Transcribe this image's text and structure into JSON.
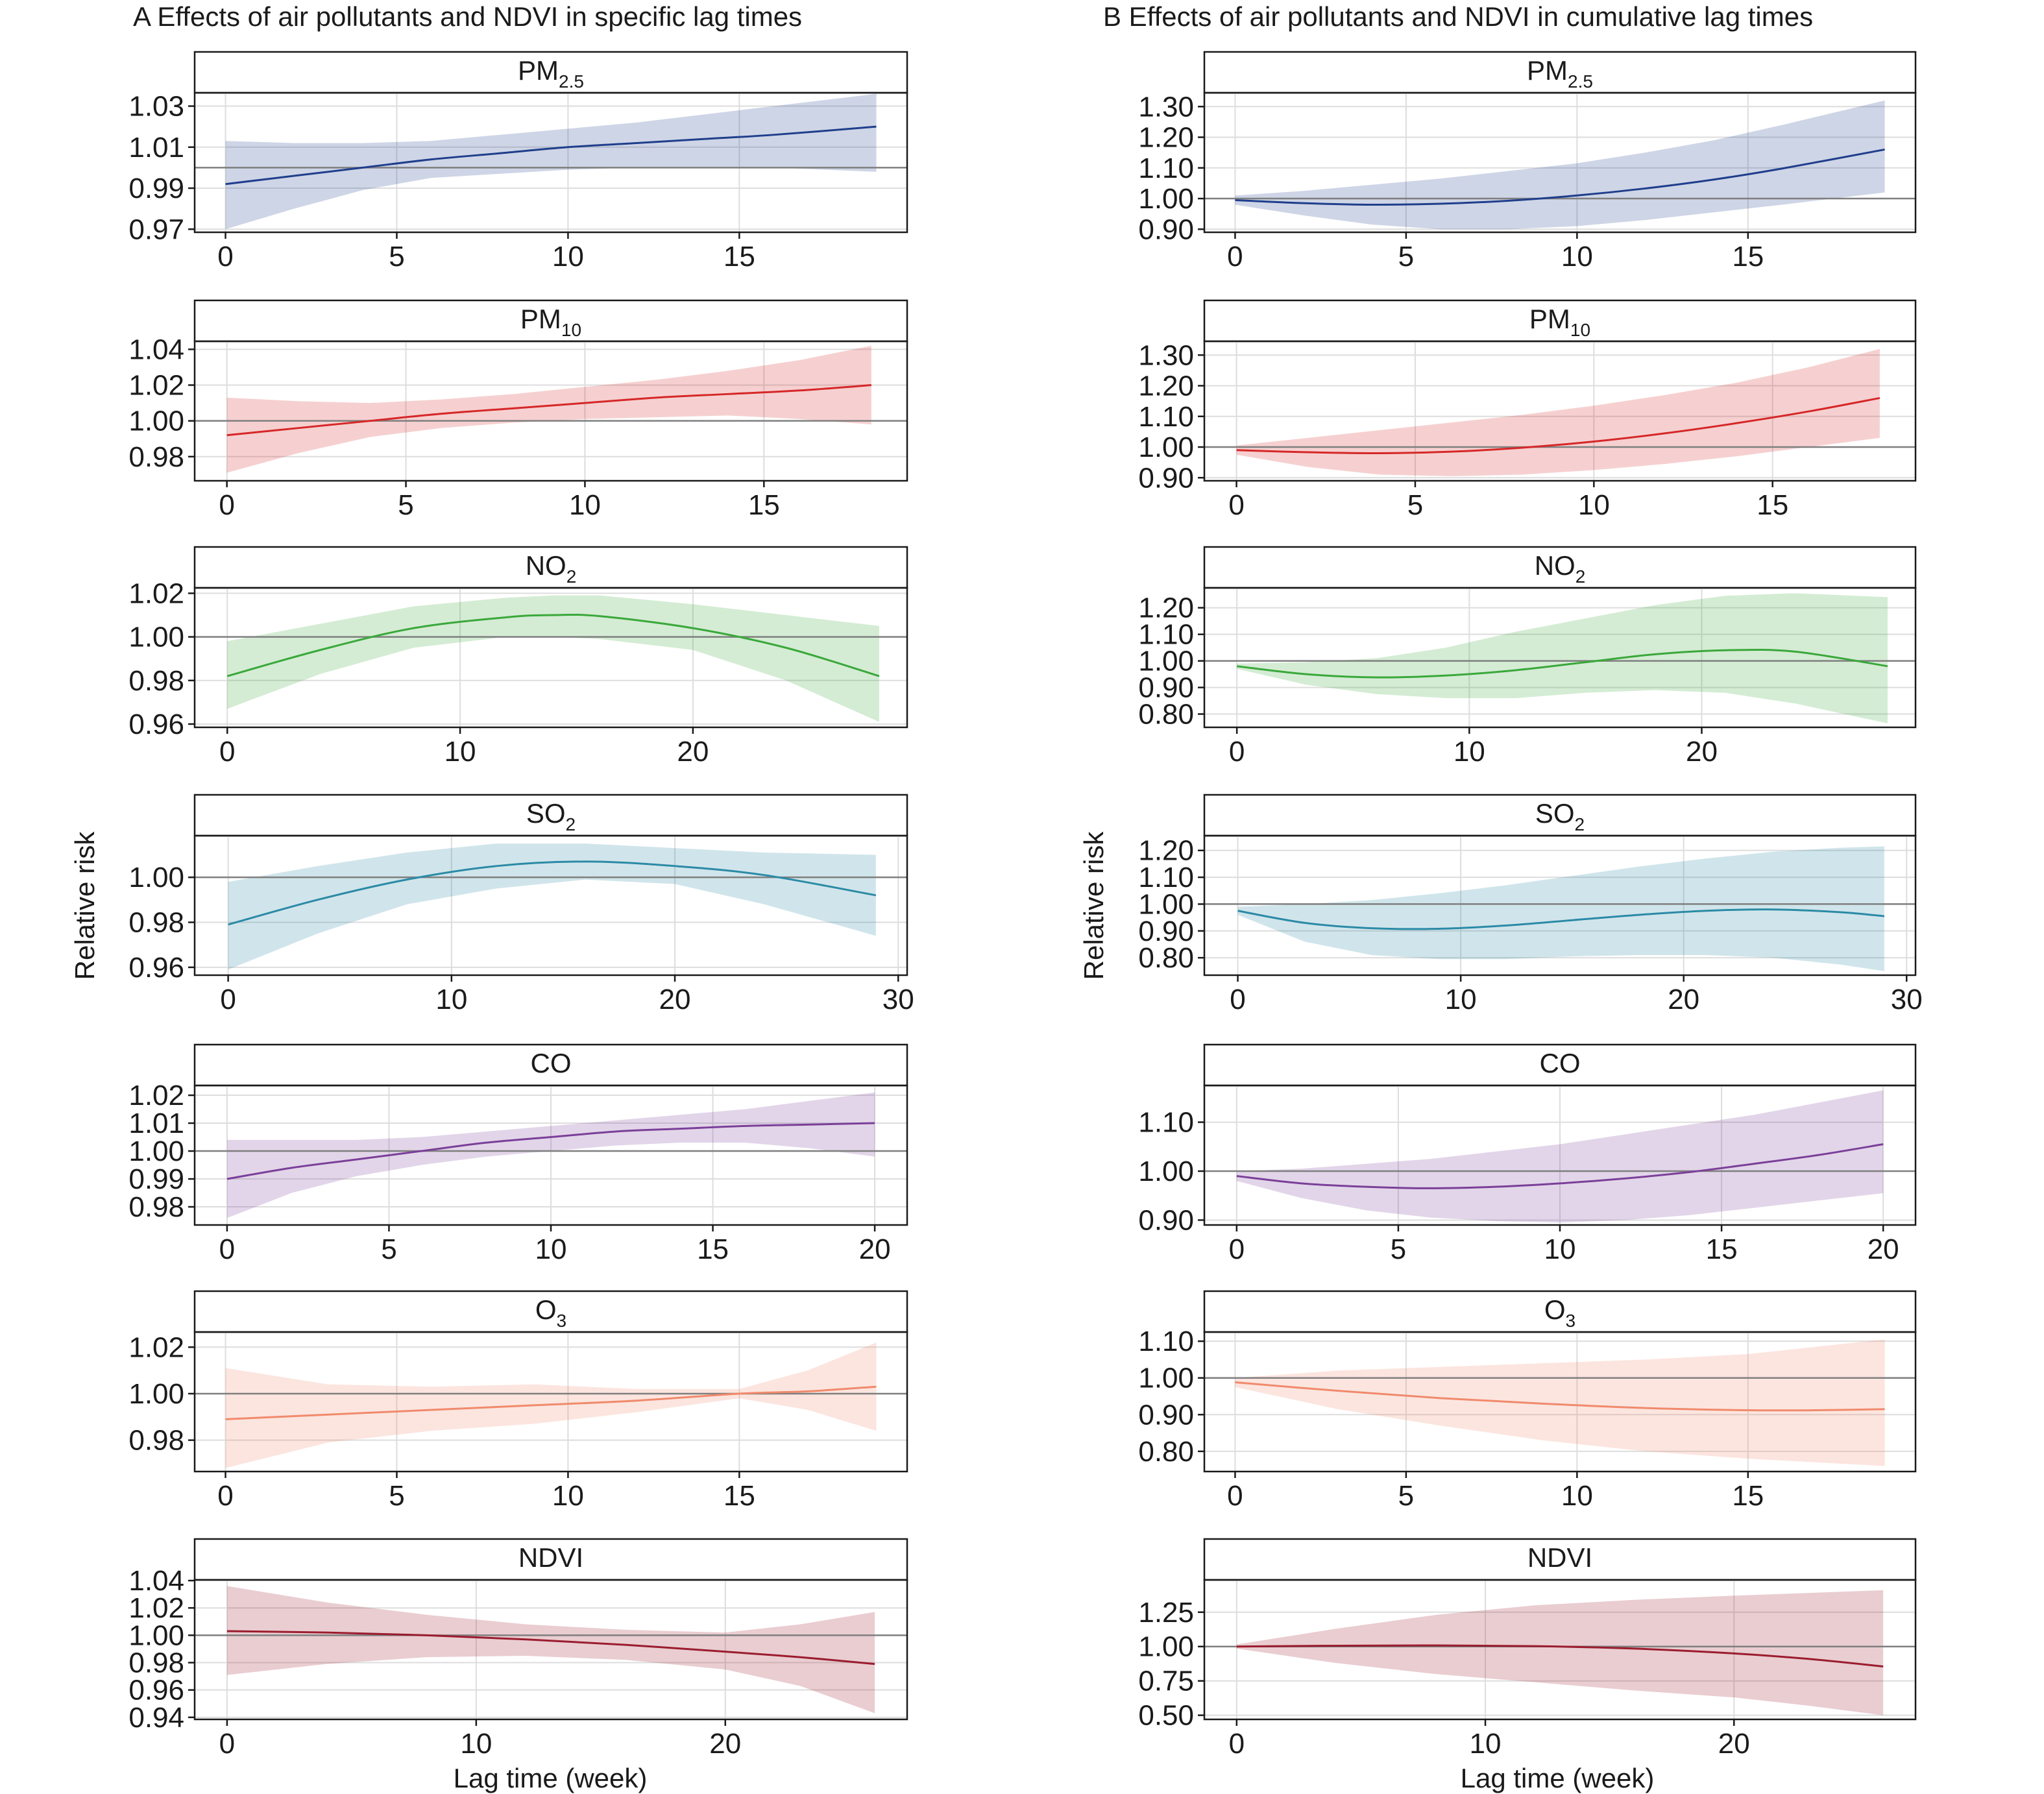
{
  "column_titles": {
    "A": "A  Effects of air pollutants and NDVI in specific lag times",
    "B": "B  Effects of air pollutants and NDVI in cumulative lag times"
  },
  "y_axis_label": "Relative risk",
  "x_axis_label": "Lag time (week)",
  "colors": {
    "PM2.5": "#1f3e8c",
    "PM10": "#d62728",
    "NO2": "#3aa83a",
    "SO2": "#2b8aa6",
    "CO": "#7b3f99",
    "O3": "#f08a6c",
    "NDVI": "#9b1c2e",
    "reference_line": "#7f7f7f",
    "grid": "#dddddd"
  },
  "chart_data": [
    {
      "type": "line",
      "panel": "A",
      "pollutant": "PM2.5",
      "title": "PM",
      "title_sub": "2.5",
      "xlabel": "",
      "ylabel": "",
      "xlim": [
        -0.9,
        19.9
      ],
      "ylim": [
        0.9685,
        1.0365
      ],
      "xticks": [
        "0",
        "5",
        "10",
        "15"
      ],
      "xtick_values": [
        0,
        5,
        10,
        15
      ],
      "yticks": [
        "0.97",
        "0.99",
        "1.01",
        "1.03"
      ],
      "ytick_values": [
        0.97,
        0.99,
        1.01,
        1.03
      ],
      "reference": 1.0,
      "x": [
        0,
        2,
        4,
        6,
        8,
        10,
        12,
        14,
        16,
        19
      ],
      "estimate": [
        0.992,
        0.996,
        1.0,
        1.004,
        1.007,
        1.01,
        1.012,
        1.014,
        1.016,
        1.02
      ],
      "lower": [
        0.97,
        0.98,
        0.989,
        0.995,
        0.997,
        0.999,
        1.0,
        1.0,
        1.0,
        0.998
      ],
      "upper": [
        1.013,
        1.012,
        1.012,
        1.013,
        1.016,
        1.019,
        1.022,
        1.026,
        1.03,
        1.036
      ]
    },
    {
      "type": "line",
      "panel": "A",
      "pollutant": "PM10",
      "title": "PM",
      "title_sub": "10",
      "xlabel": "",
      "ylabel": "",
      "xlim": [
        -0.9,
        19.0
      ],
      "ylim": [
        0.9665,
        1.0445
      ],
      "xticks": [
        "0",
        "5",
        "10",
        "15"
      ],
      "xtick_values": [
        0,
        5,
        10,
        15
      ],
      "yticks": [
        "0.98",
        "1.00",
        "1.02",
        "1.04"
      ],
      "ytick_values": [
        0.98,
        1.0,
        1.02,
        1.04
      ],
      "reference": 1.0,
      "x": [
        0,
        2,
        4,
        6,
        8,
        10,
        12,
        14,
        16,
        18
      ],
      "estimate": [
        0.992,
        0.996,
        1.0,
        1.004,
        1.007,
        1.01,
        1.013,
        1.015,
        1.017,
        1.02
      ],
      "lower": [
        0.971,
        0.982,
        0.991,
        0.996,
        0.999,
        1.001,
        1.002,
        1.003,
        1.001,
        0.998
      ],
      "upper": [
        1.013,
        1.011,
        1.01,
        1.012,
        1.015,
        1.019,
        1.023,
        1.028,
        1.034,
        1.042
      ]
    },
    {
      "type": "line",
      "panel": "A",
      "pollutant": "NO2",
      "title": "NO",
      "title_sub": "2",
      "xlabel": "",
      "ylabel": "",
      "xlim": [
        -1.4,
        29.2
      ],
      "ylim": [
        0.9585,
        1.0225
      ],
      "xticks": [
        "0",
        "10",
        "20"
      ],
      "xtick_values": [
        0,
        10,
        20
      ],
      "yticks": [
        "0.96",
        "0.98",
        "1.00",
        "1.02"
      ],
      "ytick_values": [
        0.96,
        0.98,
        1.0,
        1.02
      ],
      "reference": 1.0,
      "x": [
        0,
        4,
        8,
        12,
        14,
        16,
        20,
        24,
        28
      ],
      "estimate": [
        0.982,
        0.994,
        1.004,
        1.009,
        1.01,
        1.0095,
        1.004,
        0.995,
        0.982
      ],
      "lower": [
        0.967,
        0.983,
        0.995,
        1.0,
        1.0,
        0.999,
        0.994,
        0.98,
        0.961
      ],
      "upper": [
        0.998,
        1.006,
        1.014,
        1.018,
        1.019,
        1.019,
        1.015,
        1.01,
        1.005
      ]
    },
    {
      "type": "line",
      "panel": "A",
      "pollutant": "SO2",
      "title": "SO",
      "title_sub": "2",
      "xlabel": "",
      "ylabel": "Relative risk",
      "xlim": [
        -1.5,
        30.4
      ],
      "ylim": [
        0.9565,
        1.0185
      ],
      "xticks": [
        "0",
        "10",
        "20",
        "30"
      ],
      "xtick_values": [
        0,
        10,
        20,
        30
      ],
      "yticks": [
        "0.96",
        "0.98",
        "1.00"
      ],
      "ytick_values": [
        0.96,
        0.98,
        1.0
      ],
      "reference": 1.0,
      "x": [
        0,
        4,
        8,
        12,
        16,
        20,
        24,
        29
      ],
      "estimate": [
        0.979,
        0.99,
        0.999,
        1.005,
        1.007,
        1.005,
        1.001,
        0.992
      ],
      "lower": [
        0.959,
        0.975,
        0.988,
        0.995,
        0.999,
        0.997,
        0.988,
        0.974
      ],
      "upper": [
        0.998,
        1.005,
        1.011,
        1.015,
        1.015,
        1.013,
        1.011,
        1.01
      ]
    },
    {
      "type": "line",
      "panel": "A",
      "pollutant": "CO",
      "title": "CO",
      "title_sub": "",
      "xlabel": "",
      "ylabel": "",
      "xlim": [
        -1.0,
        21.0
      ],
      "ylim": [
        0.9735,
        1.0235
      ],
      "xticks": [
        "0",
        "5",
        "10",
        "15",
        "20"
      ],
      "xtick_values": [
        0,
        5,
        10,
        15,
        20
      ],
      "yticks": [
        "0.98",
        "0.99",
        "1.00",
        "1.01",
        "1.02"
      ],
      "ytick_values": [
        0.98,
        0.99,
        1.0,
        1.01,
        1.02
      ],
      "reference": 1.0,
      "x": [
        0,
        2,
        4,
        6,
        8,
        10,
        12,
        14,
        16,
        18,
        20
      ],
      "estimate": [
        0.99,
        0.994,
        0.997,
        1.0,
        1.003,
        1.005,
        1.007,
        1.008,
        1.009,
        1.0095,
        1.01
      ],
      "lower": [
        0.976,
        0.985,
        0.991,
        0.995,
        0.998,
        1.0,
        1.002,
        1.003,
        1.003,
        1.001,
        0.998
      ],
      "upper": [
        1.004,
        1.004,
        1.004,
        1.005,
        1.007,
        1.009,
        1.011,
        1.013,
        1.015,
        1.018,
        1.021
      ]
    },
    {
      "type": "line",
      "panel": "A",
      "pollutant": "O3",
      "title": "O",
      "title_sub": "3",
      "xlabel": "",
      "ylabel": "",
      "xlim": [
        -0.9,
        19.9
      ],
      "ylim": [
        0.9665,
        1.0265
      ],
      "xticks": [
        "0",
        "5",
        "10",
        "15"
      ],
      "xtick_values": [
        0,
        5,
        10,
        15
      ],
      "yticks": [
        "0.98",
        "1.00",
        "1.02"
      ],
      "ytick_values": [
        0.98,
        1.0,
        1.02
      ],
      "reference": 1.0,
      "x": [
        0,
        3,
        6,
        9,
        12,
        15,
        17,
        19
      ],
      "estimate": [
        0.989,
        0.991,
        0.993,
        0.995,
        0.997,
        1.0,
        1.001,
        1.003
      ],
      "lower": [
        0.968,
        0.979,
        0.984,
        0.987,
        0.992,
        0.998,
        0.993,
        0.984
      ],
      "upper": [
        1.011,
        1.004,
        1.003,
        1.004,
        1.002,
        1.002,
        1.01,
        1.022
      ]
    },
    {
      "type": "line",
      "panel": "A",
      "pollutant": "NDVI",
      "title": "NDVI",
      "title_sub": "",
      "xlabel": "Lag time (week)",
      "ylabel": "",
      "xlim": [
        -1.3,
        27.3
      ],
      "ylim": [
        0.9385,
        1.0405
      ],
      "xticks": [
        "0",
        "10",
        "20"
      ],
      "xtick_values": [
        0,
        10,
        20
      ],
      "yticks": [
        "0.94",
        "0.96",
        "0.98",
        "1.00",
        "1.02",
        "1.04"
      ],
      "ytick_values": [
        0.94,
        0.96,
        0.98,
        1.0,
        1.02,
        1.04
      ],
      "reference": 1.0,
      "x": [
        0,
        4,
        8,
        12,
        16,
        20,
        23,
        26
      ],
      "estimate": [
        1.003,
        1.002,
        1.0,
        0.997,
        0.993,
        0.988,
        0.984,
        0.979
      ],
      "lower": [
        0.971,
        0.979,
        0.984,
        0.985,
        0.982,
        0.975,
        0.963,
        0.943
      ],
      "upper": [
        1.036,
        1.024,
        1.015,
        1.008,
        1.004,
        1.002,
        1.008,
        1.017
      ]
    },
    {
      "type": "line",
      "panel": "B",
      "pollutant": "PM2.5",
      "title": "PM",
      "title_sub": "2.5",
      "xlabel": "",
      "ylabel": "",
      "xlim": [
        -0.9,
        19.9
      ],
      "ylim": [
        0.89,
        1.345
      ],
      "xticks": [
        "0",
        "5",
        "10",
        "15"
      ],
      "xtick_values": [
        0,
        5,
        10,
        15
      ],
      "yticks": [
        "0.90",
        "1.00",
        "1.10",
        "1.20",
        "1.30"
      ],
      "ytick_values": [
        0.9,
        1.0,
        1.1,
        1.2,
        1.3
      ],
      "reference": 1.0,
      "x": [
        0,
        2,
        4,
        6,
        8,
        10,
        12,
        14,
        16,
        19
      ],
      "estimate": [
        0.995,
        0.985,
        0.98,
        0.983,
        0.993,
        1.01,
        1.033,
        1.062,
        1.098,
        1.16
      ],
      "lower": [
        0.98,
        0.945,
        0.915,
        0.9,
        0.9,
        0.91,
        0.93,
        0.955,
        0.98,
        1.02
      ],
      "upper": [
        1.01,
        1.025,
        1.045,
        1.065,
        1.09,
        1.115,
        1.15,
        1.19,
        1.24,
        1.32
      ]
    },
    {
      "type": "line",
      "panel": "B",
      "pollutant": "PM10",
      "title": "PM",
      "title_sub": "10",
      "xlabel": "",
      "ylabel": "",
      "xlim": [
        -0.9,
        19.0
      ],
      "ylim": [
        0.89,
        1.345
      ],
      "xticks": [
        "0",
        "5",
        "10",
        "15"
      ],
      "xtick_values": [
        0,
        5,
        10,
        15
      ],
      "yticks": [
        "0.90",
        "1.00",
        "1.10",
        "1.20",
        "1.30"
      ],
      "ytick_values": [
        0.9,
        1.0,
        1.1,
        1.2,
        1.3
      ],
      "reference": 1.0,
      "x": [
        0,
        2,
        4,
        6,
        8,
        10,
        12,
        14,
        16,
        18
      ],
      "estimate": [
        0.99,
        0.983,
        0.98,
        0.985,
        0.998,
        1.018,
        1.045,
        1.078,
        1.116,
        1.16
      ],
      "lower": [
        0.975,
        0.935,
        0.91,
        0.905,
        0.91,
        0.925,
        0.945,
        0.97,
        1.0,
        1.03
      ],
      "upper": [
        1.005,
        1.03,
        1.055,
        1.08,
        1.105,
        1.135,
        1.17,
        1.21,
        1.26,
        1.32
      ]
    },
    {
      "type": "line",
      "panel": "B",
      "pollutant": "NO2",
      "title": "NO",
      "title_sub": "2",
      "xlabel": "",
      "ylabel": "",
      "xlim": [
        -1.4,
        29.2
      ],
      "ylim": [
        0.75,
        1.275
      ],
      "xticks": [
        "0",
        "10",
        "20"
      ],
      "xtick_values": [
        0,
        10,
        20
      ],
      "yticks": [
        "0.80",
        "0.90",
        "1.00",
        "1.10",
        "1.20"
      ],
      "ytick_values": [
        0.8,
        0.9,
        1.0,
        1.1,
        1.2
      ],
      "reference": 1.0,
      "x": [
        0,
        3,
        6,
        9,
        12,
        15,
        18,
        21,
        24,
        28
      ],
      "estimate": [
        0.98,
        0.95,
        0.938,
        0.945,
        0.965,
        0.995,
        1.025,
        1.04,
        1.035,
        0.98
      ],
      "lower": [
        0.97,
        0.91,
        0.875,
        0.86,
        0.86,
        0.88,
        0.89,
        0.88,
        0.84,
        0.765
      ],
      "upper": [
        0.99,
        0.995,
        1.01,
        1.05,
        1.11,
        1.16,
        1.21,
        1.245,
        1.255,
        1.24
      ]
    },
    {
      "type": "line",
      "panel": "B",
      "pollutant": "SO2",
      "title": "SO",
      "title_sub": "2",
      "xlabel": "",
      "ylabel": "Relative risk",
      "xlim": [
        -1.5,
        30.4
      ],
      "ylim": [
        0.735,
        1.255
      ],
      "xticks": [
        "0",
        "10",
        "20",
        "30"
      ],
      "xtick_values": [
        0,
        10,
        20,
        30
      ],
      "yticks": [
        "0.80",
        "0.90",
        "1.00",
        "1.10",
        "1.20"
      ],
      "ytick_values": [
        0.8,
        0.9,
        1.0,
        1.1,
        1.2
      ],
      "reference": 1.0,
      "x": [
        0,
        3,
        6,
        9,
        12,
        15,
        18,
        21,
        24,
        27,
        29
      ],
      "estimate": [
        0.975,
        0.93,
        0.91,
        0.908,
        0.92,
        0.94,
        0.96,
        0.975,
        0.98,
        0.97,
        0.955
      ],
      "lower": [
        0.96,
        0.86,
        0.81,
        0.795,
        0.795,
        0.805,
        0.81,
        0.81,
        0.8,
        0.775,
        0.75
      ],
      "upper": [
        0.99,
        1.0,
        1.015,
        1.04,
        1.07,
        1.105,
        1.14,
        1.17,
        1.195,
        1.21,
        1.215
      ]
    },
    {
      "type": "line",
      "panel": "B",
      "pollutant": "CO",
      "title": "CO",
      "title_sub": "",
      "xlabel": "",
      "ylabel": "",
      "xlim": [
        -1.0,
        21.0
      ],
      "ylim": [
        0.89,
        1.175
      ],
      "xticks": [
        "0",
        "5",
        "10",
        "15",
        "20"
      ],
      "xtick_values": [
        0,
        5,
        10,
        15,
        20
      ],
      "yticks": [
        "0.90",
        "1.00",
        "1.10"
      ],
      "ytick_values": [
        0.9,
        1.0,
        1.1
      ],
      "reference": 1.0,
      "x": [
        0,
        2,
        4,
        6,
        8,
        10,
        12,
        14,
        16,
        18,
        20
      ],
      "estimate": [
        0.99,
        0.975,
        0.968,
        0.965,
        0.968,
        0.975,
        0.985,
        0.998,
        1.015,
        1.033,
        1.055
      ],
      "lower": [
        0.98,
        0.945,
        0.92,
        0.905,
        0.898,
        0.895,
        0.9,
        0.91,
        0.925,
        0.94,
        0.955
      ],
      "upper": [
        1.0,
        1.005,
        1.015,
        1.025,
        1.04,
        1.055,
        1.075,
        1.095,
        1.115,
        1.14,
        1.165
      ]
    },
    {
      "type": "line",
      "panel": "B",
      "pollutant": "O3",
      "title": "O",
      "title_sub": "3",
      "xlabel": "",
      "ylabel": "",
      "xlim": [
        -0.9,
        19.9
      ],
      "ylim": [
        0.745,
        1.125
      ],
      "xticks": [
        "0",
        "5",
        "10",
        "15"
      ],
      "xtick_values": [
        0,
        5,
        10,
        15
      ],
      "yticks": [
        "0.80",
        "0.90",
        "1.00",
        "1.10"
      ],
      "ytick_values": [
        0.8,
        0.9,
        1.0,
        1.1
      ],
      "reference": 1.0,
      "x": [
        0,
        3,
        6,
        9,
        12,
        15,
        17,
        19
      ],
      "estimate": [
        0.988,
        0.965,
        0.945,
        0.93,
        0.918,
        0.912,
        0.912,
        0.915
      ],
      "lower": [
        0.975,
        0.915,
        0.87,
        0.83,
        0.8,
        0.78,
        0.77,
        0.76
      ],
      "upper": [
        1.0,
        1.02,
        1.03,
        1.04,
        1.05,
        1.065,
        1.085,
        1.105
      ]
    },
    {
      "type": "line",
      "panel": "B",
      "pollutant": "NDVI",
      "title": "NDVI",
      "title_sub": "",
      "xlabel": "Lag time (week)",
      "ylabel": "",
      "xlim": [
        -1.3,
        27.3
      ],
      "ylim": [
        0.47,
        1.485
      ],
      "xticks": [
        "0",
        "10",
        "20"
      ],
      "xtick_values": [
        0,
        10,
        20
      ],
      "yticks": [
        "0.50",
        "0.75",
        "1.00",
        "1.25"
      ],
      "ytick_values": [
        0.5,
        0.75,
        1.0,
        1.25
      ],
      "reference": 1.0,
      "x": [
        0,
        4,
        8,
        12,
        16,
        20,
        23,
        26
      ],
      "estimate": [
        1.0,
        1.006,
        1.008,
        1.003,
        0.985,
        0.95,
        0.91,
        0.855
      ],
      "lower": [
        0.985,
        0.88,
        0.8,
        0.74,
        0.68,
        0.63,
        0.57,
        0.5
      ],
      "upper": [
        1.015,
        1.13,
        1.23,
        1.3,
        1.34,
        1.37,
        1.39,
        1.41
      ]
    }
  ]
}
